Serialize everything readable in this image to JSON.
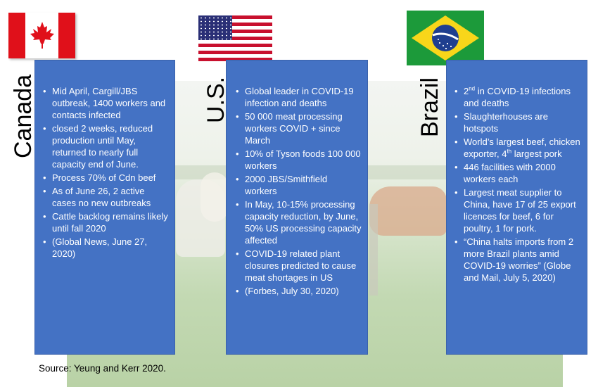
{
  "flags": {
    "canada": "canada-flag-icon",
    "us": "us-flag-icon",
    "brazil": "brazil-flag-icon"
  },
  "colors": {
    "panel": "#4472c4",
    "panel_text": "#ffffff"
  },
  "countries": [
    {
      "name": "Canada",
      "bullets": [
        "Mid April, Cargill/JBS outbreak, 1400 workers and contacts infected",
        "closed 2 weeks, reduced production until May, returned to nearly full capacity end of June.",
        "Process 70% of Cdn beef",
        "As of June 26, 2 active cases no new outbreaks",
        "Cattle backlog remains likely until fall 2020",
        "(Global News, June 27, 2020)"
      ]
    },
    {
      "name": "U.S.",
      "bullets": [
        "Global leader in COVID-19 infection and deaths",
        "50 000 meat processing workers COVID + since March",
        "10% of Tyson foods 100 000 workers",
        "2000 JBS/Smithfield workers",
        "In May, 10-15% processing capacity reduction, by June, 50% US processing capacity affected",
        "COVID-19 related plant closures predicted to cause meat shortages in US",
        "(Forbes, July 30, 2020)"
      ]
    },
    {
      "name": "Brazil",
      "bullets": [
        {
          "main": "2",
          "sup": "nd",
          "rest": " in COVID-19 infections and deaths"
        },
        "Slaughterhouses are hotspots",
        {
          "main": "World’s largest beef, chicken exporter, 4",
          "sup": "th",
          "rest": " largest pork"
        },
        "446 facilities with 2000 workers each",
        "Largest meat supplier to China, have 17 of 25 export licences for beef, 6 for poultry, 1 for pork.",
        "“China halts imports from 2 more Brazil plants amid COVID-19 worries” (Globe and Mail, July 5, 2020)"
      ]
    }
  ],
  "source": "Source: Yeung and Kerr 2020."
}
